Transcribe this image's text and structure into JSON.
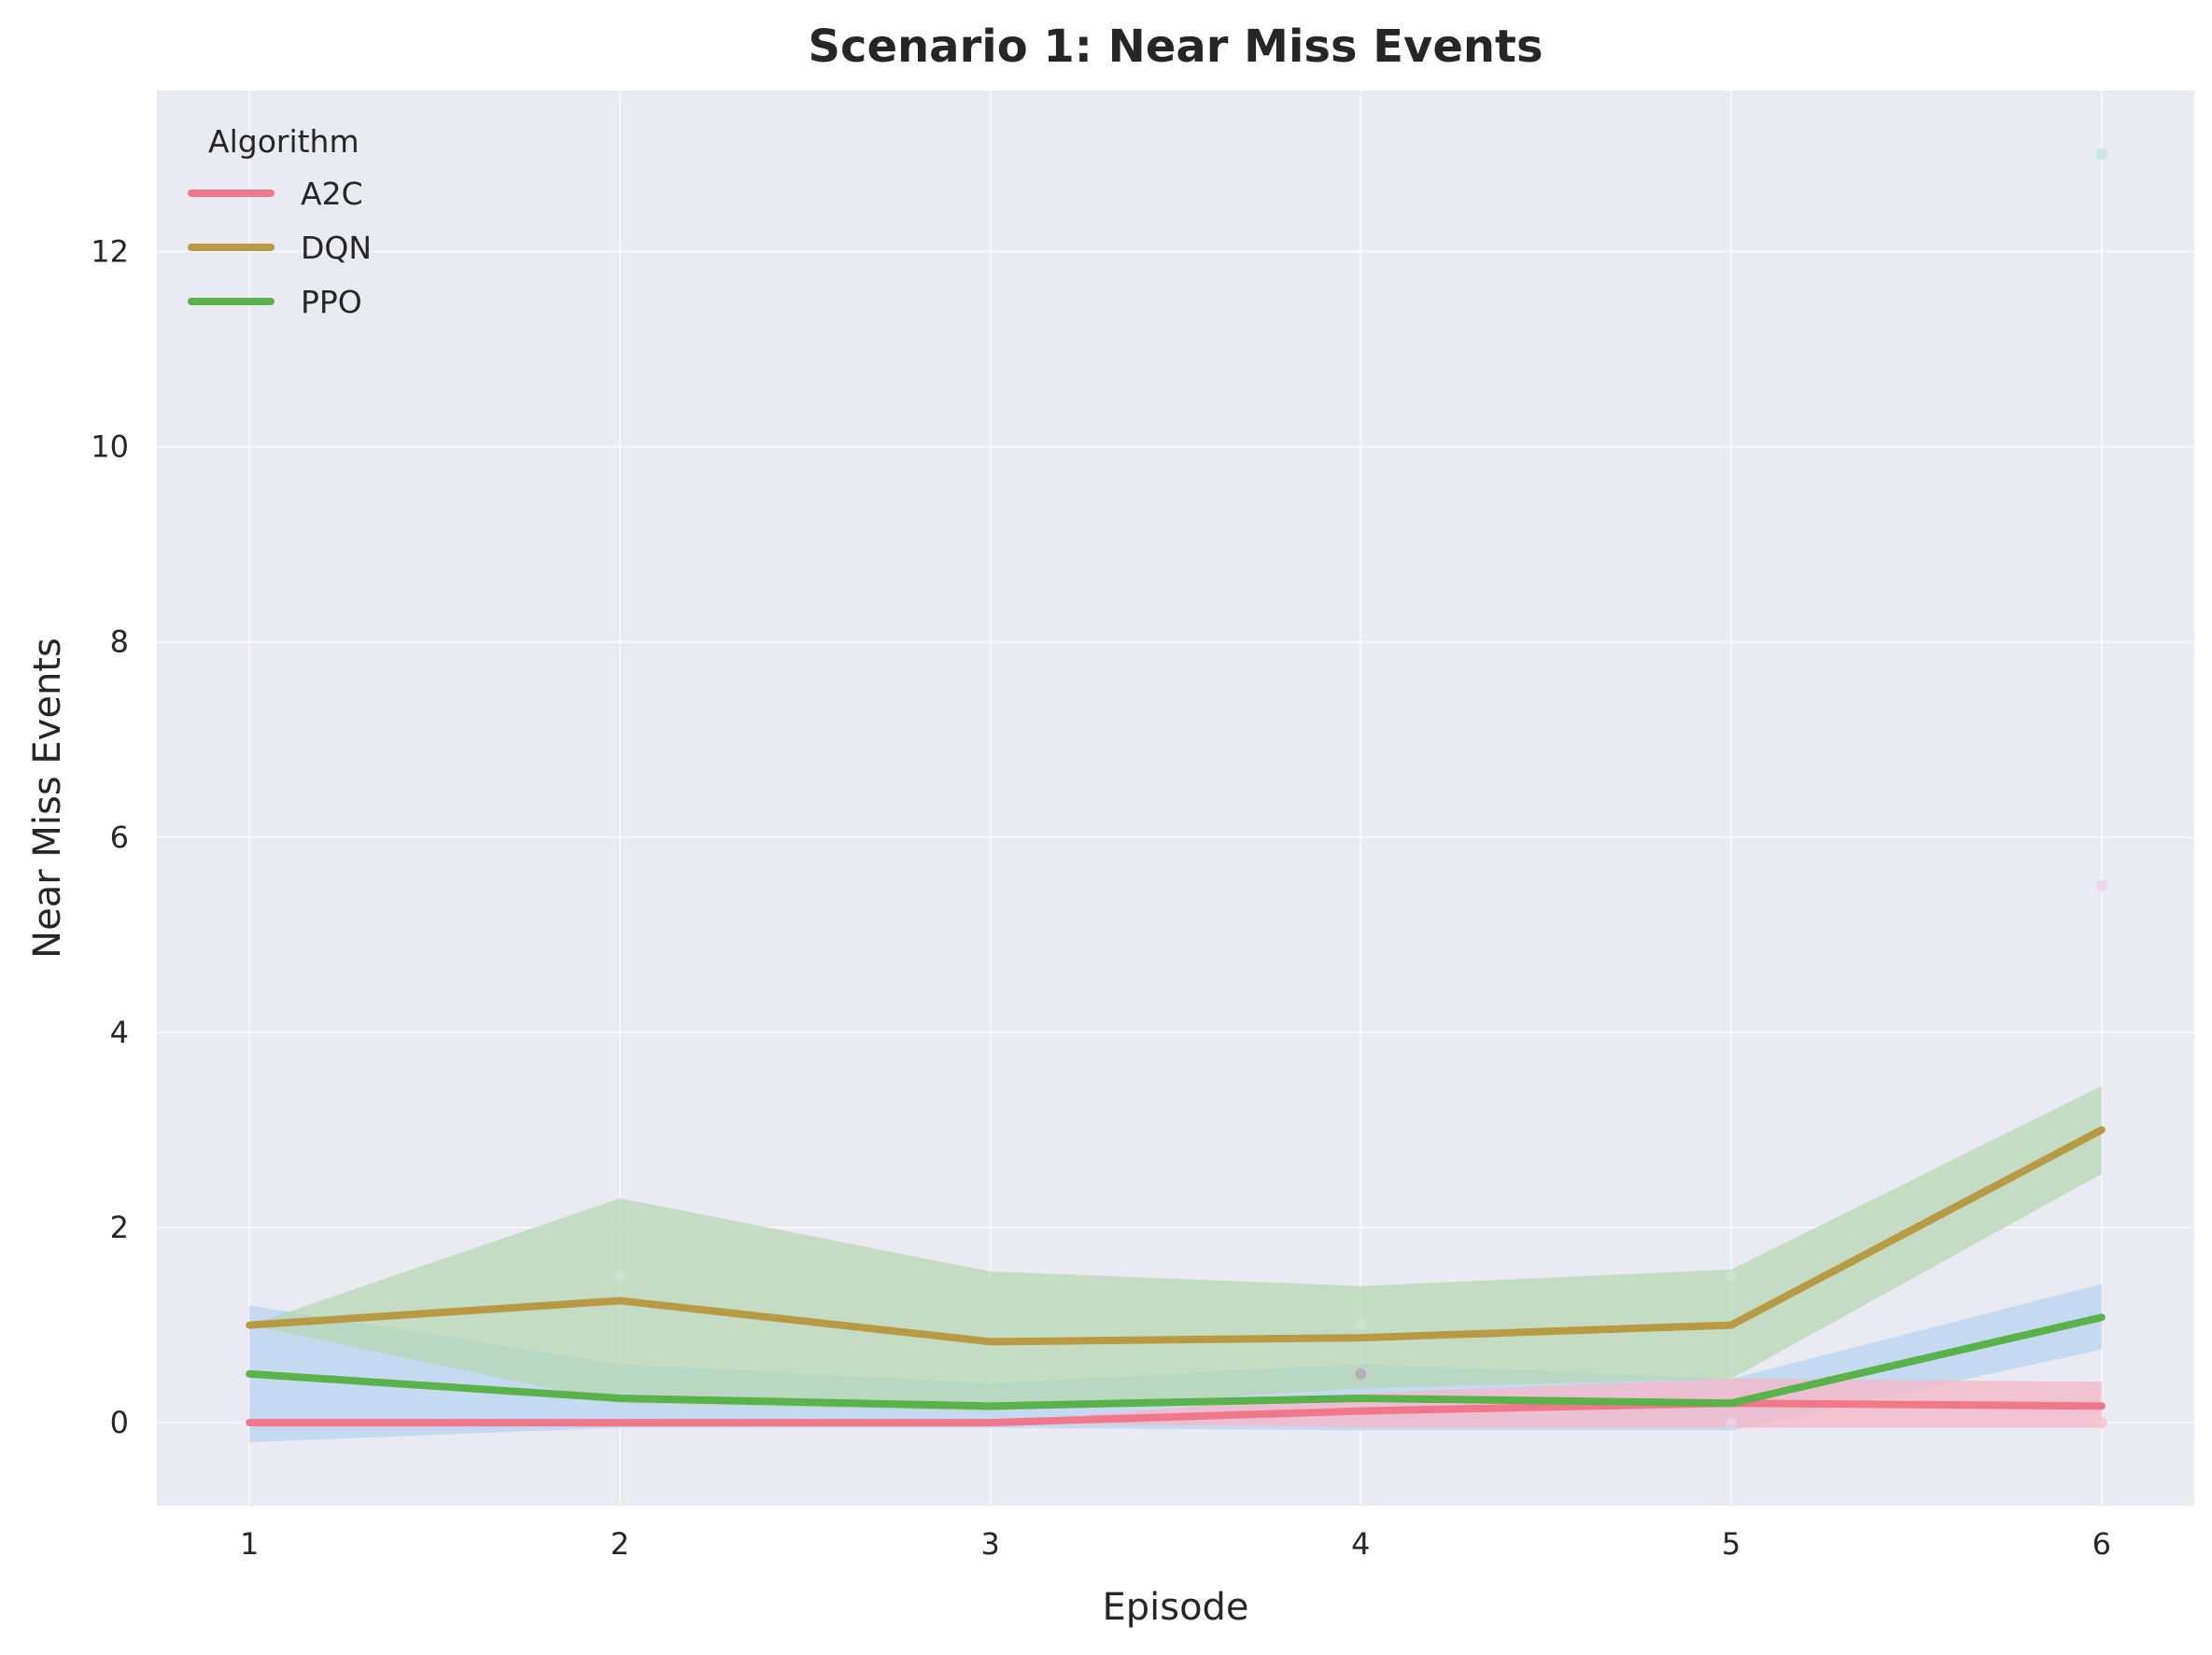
{
  "chart_data": {
    "type": "line",
    "title": "Scenario 1: Near Miss Events",
    "xlabel": "Episode",
    "ylabel": "Near Miss Events",
    "x": [
      1,
      2,
      3,
      4,
      5,
      6
    ],
    "xticks": [
      "1",
      "2",
      "3",
      "4",
      "5",
      "6"
    ],
    "yticks": [
      0,
      2,
      4,
      6,
      8,
      10,
      12
    ],
    "ytick_labels": [
      "0",
      "2",
      "4",
      "6",
      "8",
      "10",
      "12"
    ],
    "xlim": [
      0.75,
      6.25
    ],
    "ylim": [
      -0.85,
      13.65
    ],
    "grid": true,
    "legend": {
      "title": "Algorithm",
      "placement": "upper-left",
      "entries": [
        "A2C",
        "DQN",
        "PPO"
      ]
    },
    "series": [
      {
        "name": "A2C",
        "color": "#f0788a",
        "band_color": "#f4b6c6",
        "values": [
          0,
          0,
          0,
          0.12,
          0.2,
          0.17
        ],
        "band_lower": [
          0,
          0,
          0,
          -0.05,
          -0.05,
          -0.05
        ],
        "band_upper": [
          0,
          0,
          0,
          0.3,
          0.45,
          0.42
        ]
      },
      {
        "name": "DQN",
        "color": "#b89a45",
        "band_color": "#b5d6b0",
        "values": [
          1.0,
          1.25,
          0.83,
          0.87,
          1.0,
          3.0
        ],
        "band_lower": [
          1.0,
          0.2,
          0.12,
          0.35,
          0.45,
          2.55
        ],
        "band_upper": [
          1.0,
          2.3,
          1.55,
          1.4,
          1.57,
          3.45
        ]
      },
      {
        "name": "PPO",
        "color": "#5ab34a",
        "band_color": "#b8d3f0",
        "values": [
          0.5,
          0.25,
          0.17,
          0.25,
          0.2,
          1.08
        ],
        "band_lower": [
          -0.2,
          -0.05,
          -0.05,
          -0.08,
          -0.08,
          0.75
        ],
        "band_upper": [
          1.2,
          0.6,
          0.4,
          0.6,
          0.45,
          1.42
        ]
      }
    ],
    "scatter_points": [
      {
        "x": 2,
        "y": 1.5,
        "color": "#c9e3d2"
      },
      {
        "x": 4,
        "y": 1.0,
        "color": "#c9e3d2"
      },
      {
        "x": 4,
        "y": 0.5,
        "color": "#b8a8b8"
      },
      {
        "x": 5,
        "y": 1.5,
        "color": "#c9e3d2"
      },
      {
        "x": 5,
        "y": 0.0,
        "color": "#e9d0e8"
      },
      {
        "x": 6,
        "y": 13.0,
        "color": "#c6e5e2"
      },
      {
        "x": 6,
        "y": 5.5,
        "color": "#efd3ea"
      },
      {
        "x": 6,
        "y": 0.0,
        "color": "#f2c9d2"
      }
    ],
    "colors": {
      "plot_background": "#eaeaf2",
      "grid": "#ffffff"
    }
  }
}
